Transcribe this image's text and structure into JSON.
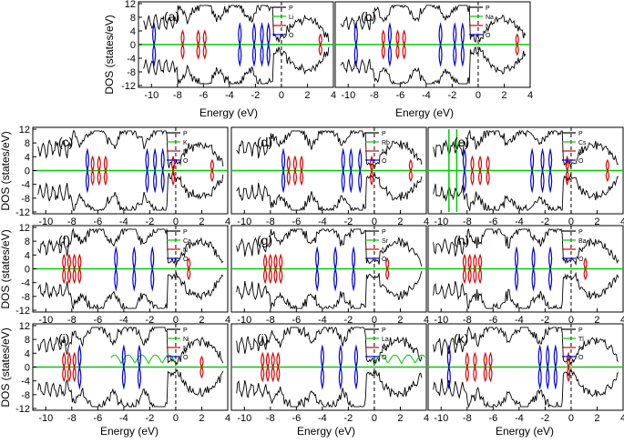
{
  "figure": {
    "ylabel": "DOS (states/eV)",
    "xlabel": "Energy (eV)"
  },
  "chart_data": [
    {
      "type": "line",
      "panel": "(a)",
      "legend": [
        "P",
        "Li",
        "N",
        "O"
      ],
      "legend_colors": [
        "#000000",
        "#00cc00",
        "#e00000",
        "#0000e0"
      ],
      "xlabel": "Energy (eV)",
      "ylabel": "DOS (states/eV)",
      "xlim": [
        -11,
        4
      ],
      "ylim": [
        -12,
        12
      ],
      "xticks": [
        -10,
        -8,
        -6,
        -4,
        -2,
        0,
        2,
        4
      ],
      "yticks": [
        -12,
        -8,
        -4,
        0,
        4,
        8,
        12
      ],
      "fermi_level": 0,
      "peaks": {
        "N": [
          -7.6,
          -6.4,
          -5.9,
          3
        ],
        "O": [
          -9.8,
          -3.2,
          -2.1,
          -1.5,
          -1.0
        ]
      }
    },
    {
      "type": "line",
      "panel": "(b)",
      "legend": [
        "P",
        "Na",
        "N",
        "O"
      ],
      "legend_colors": [
        "#000000",
        "#00cc00",
        "#e00000",
        "#0000e0"
      ],
      "xlabel": "Energy (eV)",
      "xlim": [
        -11,
        4
      ],
      "ylim": [
        -12,
        12
      ],
      "xticks": [
        -10,
        -8,
        -6,
        -4,
        -2,
        0,
        2,
        4
      ],
      "fermi_level": 0,
      "peaks": {
        "N": [
          -7.3,
          -6.2,
          -5.7,
          3
        ],
        "O": [
          -9.4,
          -6.8,
          -2.9,
          -1.8,
          -1.2
        ]
      }
    },
    {
      "type": "line",
      "panel": "(c)",
      "legend": [
        "P",
        "K",
        "N",
        "O"
      ],
      "legend_colors": [
        "#000000",
        "#00cc00",
        "#e00000",
        "#0000e0"
      ],
      "xlabel": "Energy (eV)",
      "ylabel": "DOS (states/eV)",
      "xlim": [
        -11,
        4
      ],
      "ylim": [
        -12,
        12
      ],
      "xticks": [
        -10,
        -8,
        -6,
        -4,
        -2,
        0,
        2,
        4
      ],
      "yticks": [
        -12,
        -8,
        -4,
        0,
        4,
        8,
        12
      ],
      "fermi_level": 0,
      "peaks": {
        "N": [
          -6.4,
          -5.9,
          -5.4,
          -0.2,
          2.8
        ],
        "O": [
          -6.8,
          -2.2,
          -1.6,
          -1.0
        ]
      }
    },
    {
      "type": "line",
      "panel": "(d)",
      "legend": [
        "P",
        "Rb",
        "N",
        "O"
      ],
      "legend_colors": [
        "#000000",
        "#00cc00",
        "#e00000",
        "#0000e0"
      ],
      "xlabel": "Energy (eV)",
      "xlim": [
        -11,
        4
      ],
      "ylim": [
        -12,
        12
      ],
      "xticks": [
        -10,
        -8,
        -6,
        -4,
        -2,
        0,
        2,
        4
      ],
      "fermi_level": 0,
      "peaks": {
        "N": [
          -6.6,
          -6.1,
          -5.6,
          -0.2,
          2.8
        ],
        "O": [
          -7.0,
          -2.4,
          -1.8,
          -1.1
        ]
      }
    },
    {
      "type": "line",
      "panel": "(e)",
      "legend": [
        "P",
        "Cs",
        "N",
        "O"
      ],
      "legend_colors": [
        "#000000",
        "#00cc00",
        "#e00000",
        "#0000e0"
      ],
      "xlabel": "Energy (eV)",
      "xlim": [
        -11,
        4
      ],
      "ylim": [
        -12,
        12
      ],
      "xticks": [
        -10,
        -8,
        -6,
        -4,
        -2,
        0,
        2,
        4
      ],
      "fermi_level": 0,
      "peaks": {
        "N": [
          -7.6,
          -7.0,
          -6.4,
          -0.3,
          2.8
        ],
        "O": [
          -8.2,
          -3.0,
          -2.2,
          -1.6
        ]
      },
      "cation_peaks": [
        -9.4,
        -8.8
      ]
    },
    {
      "type": "line",
      "panel": "(f)",
      "legend": [
        "P",
        "Ca",
        "N",
        "O"
      ],
      "legend_colors": [
        "#000000",
        "#00cc00",
        "#e00000",
        "#0000e0"
      ],
      "xlabel": "Energy (eV)",
      "ylabel": "DOS (states/eV)",
      "xlim": [
        -11,
        4
      ],
      "ylim": [
        -12,
        12
      ],
      "xticks": [
        -10,
        -8,
        -6,
        -4,
        -2,
        0,
        2,
        4
      ],
      "yticks": [
        -12,
        -8,
        -4,
        0,
        4,
        8,
        12
      ],
      "fermi_level": 0,
      "peaks": {
        "N": [
          -8.6,
          -8.2,
          -7.8,
          -7.4,
          1
        ],
        "O": [
          -4.6,
          -3.2,
          -1.8
        ]
      }
    },
    {
      "type": "line",
      "panel": "(g)",
      "legend": [
        "P",
        "Sr",
        "N",
        "O"
      ],
      "legend_colors": [
        "#000000",
        "#00cc00",
        "#e00000",
        "#0000e0"
      ],
      "xlabel": "Energy (eV)",
      "xlim": [
        -11,
        4
      ],
      "ylim": [
        -12,
        12
      ],
      "xticks": [
        -10,
        -8,
        -6,
        -4,
        -2,
        0,
        2,
        4
      ],
      "fermi_level": 0,
      "peaks": {
        "N": [
          -8.4,
          -8.0,
          -7.6,
          -7.2,
          1
        ],
        "O": [
          -4.4,
          -3.0,
          -1.6
        ]
      }
    },
    {
      "type": "line",
      "panel": "(h)",
      "legend": [
        "P",
        "Ba",
        "N",
        "O"
      ],
      "legend_colors": [
        "#000000",
        "#00cc00",
        "#e00000",
        "#0000e0"
      ],
      "xlabel": "Energy (eV)",
      "xlim": [
        -11,
        4
      ],
      "ylim": [
        -12,
        12
      ],
      "xticks": [
        -10,
        -8,
        -6,
        -4,
        -2,
        0,
        2,
        4
      ],
      "fermi_level": 0,
      "peaks": {
        "N": [
          -8.2,
          -7.8,
          -7.4,
          -7.0,
          1.1
        ],
        "O": [
          -4.2,
          -2.9,
          -1.6
        ]
      }
    },
    {
      "type": "line",
      "panel": "(i)",
      "legend": [
        "P",
        "Ni",
        "N",
        "O"
      ],
      "legend_colors": [
        "#000000",
        "#00cc00",
        "#e00000",
        "#0000e0"
      ],
      "xlabel": "Energy (eV)",
      "ylabel": "DOS (states/eV)",
      "xlim": [
        -11,
        4
      ],
      "ylim": [
        -12,
        12
      ],
      "xticks": [
        -10,
        -8,
        -6,
        -4,
        -2,
        0,
        2,
        4
      ],
      "yticks": [
        -12,
        -8,
        -4,
        0,
        4,
        8,
        12
      ],
      "fermi_level": 0,
      "peaks": {
        "N": [
          -8.6,
          -8.2,
          -7.8,
          2
        ],
        "O": [
          -7.4,
          -4,
          -2.8
        ]
      },
      "cation_band": [
        -5,
        0
      ]
    },
    {
      "type": "line",
      "panel": "(j)",
      "legend": [
        "P",
        "La",
        "N",
        "O"
      ],
      "legend_colors": [
        "#000000",
        "#00cc00",
        "#e00000",
        "#0000e0"
      ],
      "xlabel": "Energy (eV)",
      "xlim": [
        -11,
        4
      ],
      "ylim": [
        -12,
        12
      ],
      "xticks": [
        -10,
        -8,
        -6,
        -4,
        -2,
        0,
        2,
        4
      ],
      "fermi_level": 0,
      "peaks": {
        "N": [
          -8.6,
          -8.2,
          -7.8,
          -7.4
        ],
        "O": [
          -4,
          -2.6,
          -1.4
        ]
      },
      "cation_band": [
        0,
        4
      ]
    },
    {
      "type": "line",
      "panel": "(k)",
      "legend": [
        "P",
        "Tl",
        "N",
        "O"
      ],
      "legend_colors": [
        "#000000",
        "#00cc00",
        "#e00000",
        "#0000e0"
      ],
      "xlabel": "Energy (eV)",
      "xlim": [
        -11,
        4
      ],
      "ylim": [
        -12,
        12
      ],
      "xticks": [
        -10,
        -8,
        -6,
        -4,
        -2,
        0,
        2,
        4
      ],
      "fermi_level": 0,
      "peaks": {
        "N": [
          -8,
          -7.4,
          -6.6,
          -6.2,
          -0.2
        ],
        "O": [
          -9.4,
          -2.4,
          -1.8,
          -1.2
        ]
      }
    }
  ]
}
